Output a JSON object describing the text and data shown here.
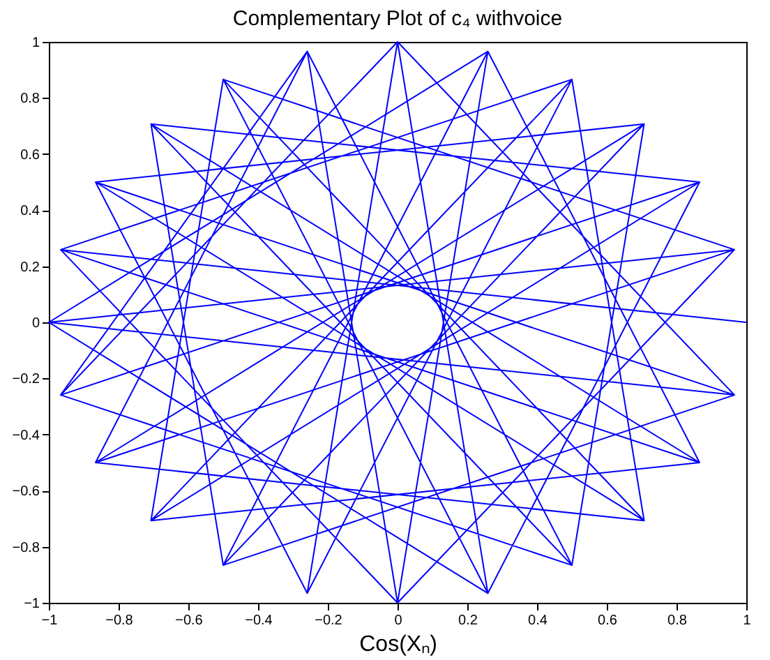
{
  "chart_data": {
    "type": "line",
    "title": "Complementary Plot of c₄ withvoice",
    "xlabel": "Cos(Xₙ)",
    "x": [
      1,
      -0.966,
      0.866,
      -0.707,
      0.5,
      -0.259,
      0,
      0.259,
      -0.5,
      0.707,
      -0.866,
      0.966,
      -1,
      0.966,
      -0.866,
      0.707,
      -0.5,
      0.259,
      0,
      -0.259,
      0.5,
      -0.707,
      0.866,
      -0.966,
      -0.259,
      -0.866,
      0.707,
      0.5,
      -0.966,
      0,
      0.966,
      -0.5,
      -0.707,
      0.866,
      0.259,
      -1,
      0.259,
      0.866,
      -0.707,
      -0.5,
      0.966,
      0,
      -0.966,
      0.5,
      0.707,
      -0.866,
      -0.259
    ],
    "series": [
      {
        "color": "#0000ff",
        "values": [
          0,
          0.259,
          -0.5,
          0.707,
          -0.866,
          0.966,
          -1,
          0.966,
          -0.866,
          0.707,
          -0.5,
          0.259,
          0,
          -0.259,
          0.5,
          -0.707,
          0.866,
          -0.966,
          1,
          -0.966,
          0.866,
          -0.707,
          0.5,
          -0.259,
          0.966,
          -0.5,
          -0.707,
          0.866,
          0.259,
          -1,
          0.259,
          0.866,
          -0.707,
          -0.5,
          0.966,
          0,
          -0.966,
          0.5,
          0.707,
          -0.866,
          -0.259,
          1,
          -0.259,
          -0.866,
          0.707,
          0.5,
          -0.966
        ]
      }
    ],
    "xlim": [
      -1,
      1
    ],
    "ylim": [
      -1,
      1
    ],
    "xticks": [
      -1,
      -0.8,
      -0.6,
      -0.4,
      -0.2,
      0,
      0.2,
      0.4,
      0.6,
      0.8,
      1
    ],
    "yticks": [
      -1,
      -0.8,
      -0.6,
      -0.4,
      -0.2,
      0,
      0.2,
      0.4,
      0.6,
      0.8,
      1
    ],
    "grid": false,
    "marker": "none",
    "line_style": "solid"
  }
}
